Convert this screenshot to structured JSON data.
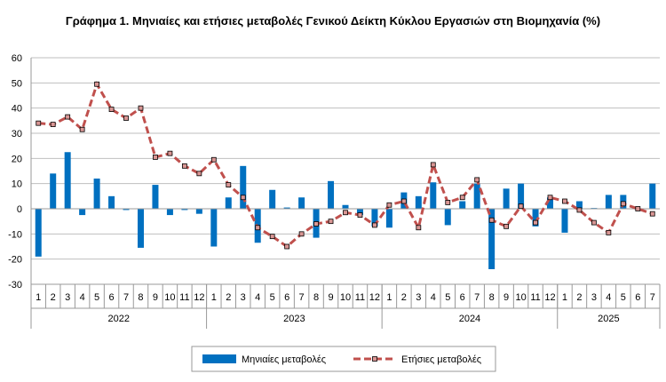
{
  "chart_data": {
    "type": "bar",
    "title": "Γράφημα 1.  Μηνιαίες και ετήσιες μεταβολές  Γενικού Δείκτη Κύκλου Εργασιών στη Βιομηχανία  (%)",
    "years": [
      {
        "label": "2022",
        "months": [
          "1",
          "2",
          "3",
          "4",
          "5",
          "6",
          "7",
          "8",
          "9",
          "10",
          "11",
          "12"
        ]
      },
      {
        "label": "2023",
        "months": [
          "1",
          "2",
          "3",
          "4",
          "5",
          "6",
          "7",
          "8",
          "9",
          "10",
          "11",
          "12"
        ]
      },
      {
        "label": "2024",
        "months": [
          "1",
          "2",
          "3",
          "4",
          "5",
          "6",
          "7",
          "8",
          "9",
          "10",
          "11",
          "12"
        ]
      },
      {
        "label": "2025",
        "months": [
          "1",
          "2",
          "3",
          "4",
          "5",
          "6",
          "7"
        ]
      }
    ],
    "ylim": [
      -30,
      60
    ],
    "yticks": [
      -30,
      -20,
      -10,
      0,
      10,
      20,
      30,
      40,
      50,
      60
    ],
    "grid": true,
    "legend_position": "bottom",
    "series": [
      {
        "name": "Μηνιαίες μεταβολές",
        "type": "bar",
        "color": "#0070C0",
        "values": [
          -19,
          14,
          22.5,
          -2.5,
          12,
          5,
          -0.5,
          -15.5,
          9.5,
          -2.5,
          -0.5,
          -2,
          -15,
          4.5,
          17,
          -13.5,
          7.5,
          0.5,
          4.5,
          -11.5,
          11,
          1.5,
          -2.5,
          -7,
          -7.5,
          6.5,
          5,
          10.5,
          -6.5,
          3,
          10,
          -24,
          8,
          10,
          -7,
          4.5,
          -9.5,
          3,
          0.3,
          5.5,
          5.5,
          0,
          10
        ]
      },
      {
        "name": "Ετήσιες μεταβολές",
        "type": "line",
        "color": "#C0504D",
        "values": [
          34,
          33.5,
          36.5,
          31.5,
          49.5,
          39.5,
          36,
          40,
          20.5,
          22,
          17,
          14,
          19.5,
          9.5,
          4.5,
          -7.5,
          -11,
          -15,
          -10,
          -6,
          -5,
          -1.5,
          -2.5,
          -6.5,
          1.5,
          3,
          -7.5,
          17.5,
          2.5,
          4.5,
          11.5,
          -4.5,
          -7,
          1,
          -5.5,
          4.5,
          3,
          -0.5,
          -5.5,
          -9.5,
          2,
          0,
          -2
        ]
      }
    ]
  }
}
